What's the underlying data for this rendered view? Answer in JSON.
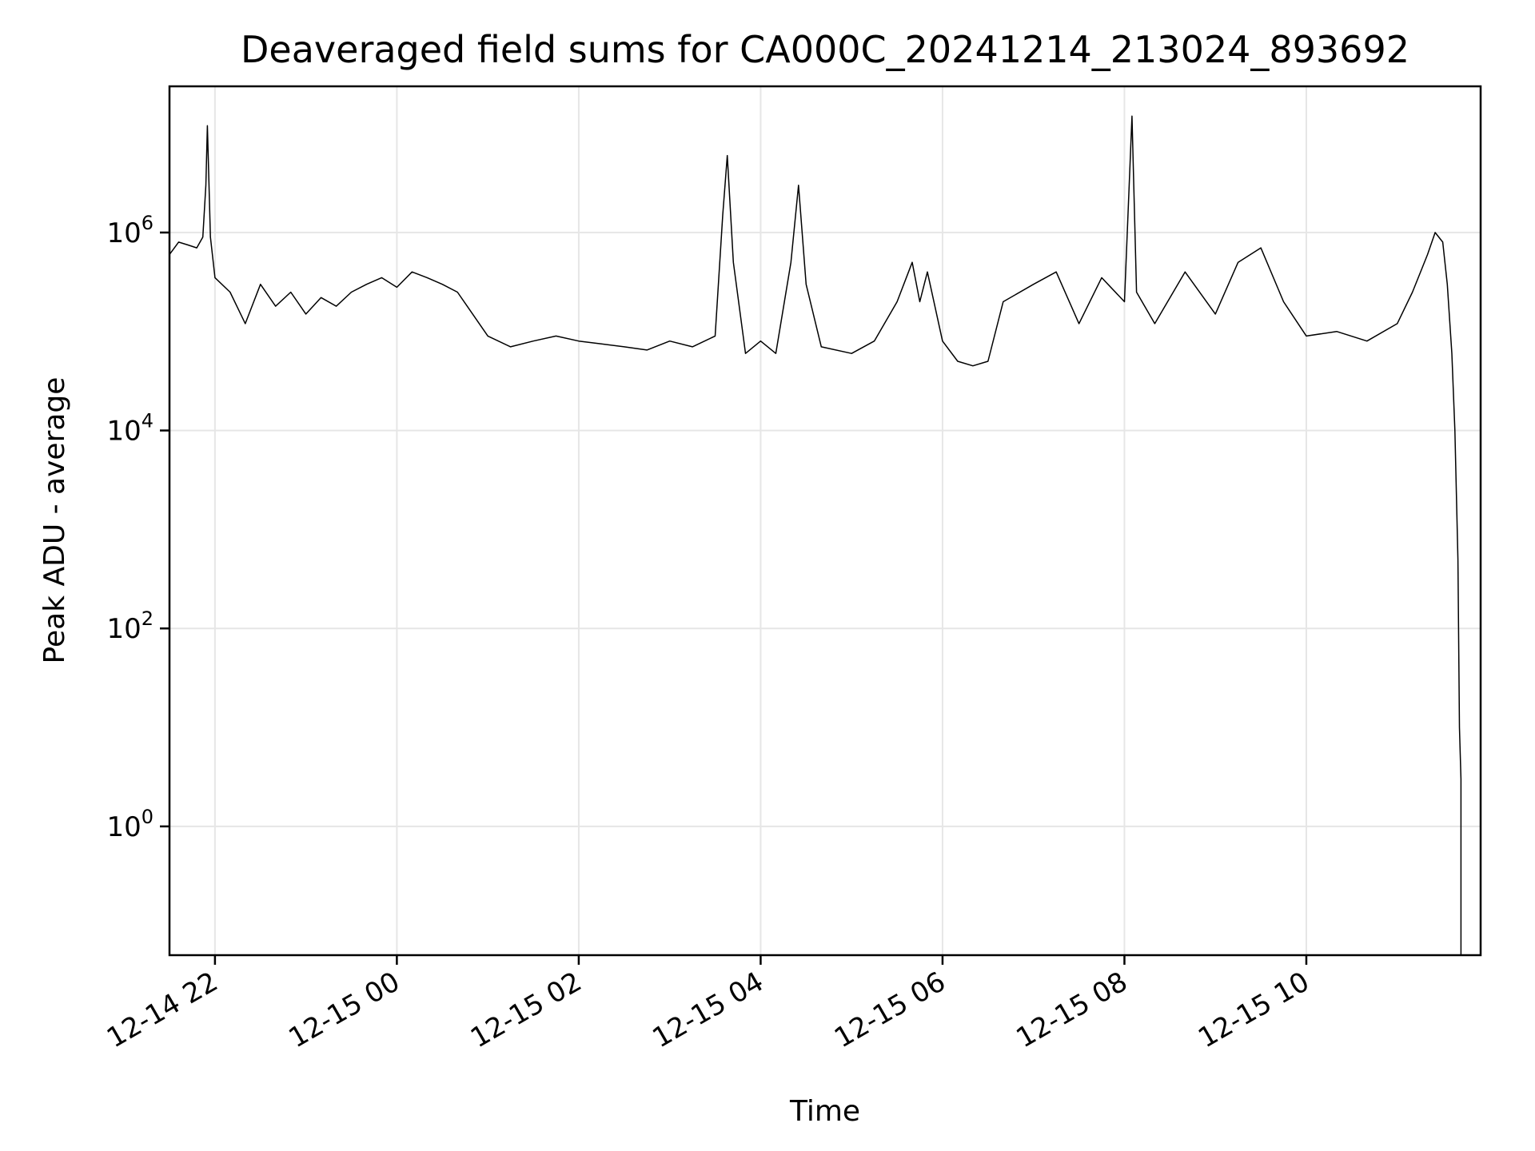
{
  "chart_data": {
    "type": "line",
    "title": "Deaveraged field sums for CA000C_20241214_213024_893692",
    "xlabel": "Time",
    "ylabel": "Peak ADU - average",
    "y_scale": "log",
    "grid": true,
    "line_color": "#000000",
    "grid_color": "#e6e6e6",
    "x_range": [
      "2024-12-14 21:30",
      "2024-12-15 11:55"
    ],
    "y_range": [
      0.05,
      30000000
    ],
    "x_ticks": [
      {
        "time": "2024-12-14 22:00",
        "label": "12-14 22"
      },
      {
        "time": "2024-12-15 00:00",
        "label": "12-15 00"
      },
      {
        "time": "2024-12-15 02:00",
        "label": "12-15 02"
      },
      {
        "time": "2024-12-15 04:00",
        "label": "12-15 04"
      },
      {
        "time": "2024-12-15 06:00",
        "label": "12-15 06"
      },
      {
        "time": "2024-12-15 08:00",
        "label": "12-15 08"
      },
      {
        "time": "2024-12-15 10:00",
        "label": "12-15 10"
      }
    ],
    "y_ticks": [
      {
        "value": 1,
        "base": "10",
        "exp": "0"
      },
      {
        "value": 100,
        "base": "10",
        "exp": "2"
      },
      {
        "value": 10000,
        "base": "10",
        "exp": "4"
      },
      {
        "value": 1000000,
        "base": "10",
        "exp": "6"
      }
    ],
    "series": [
      {
        "points": [
          [
            "2024-12-14 21:30",
            600000
          ],
          [
            "2024-12-14 21:36",
            800000
          ],
          [
            "2024-12-14 21:42",
            750000
          ],
          [
            "2024-12-14 21:48",
            700000
          ],
          [
            "2024-12-14 21:52",
            900000
          ],
          [
            "2024-12-14 21:54",
            3000000
          ],
          [
            "2024-12-14 21:55",
            12000000
          ],
          [
            "2024-12-14 21:57",
            900000
          ],
          [
            "2024-12-14 22:00",
            350000
          ],
          [
            "2024-12-14 22:10",
            250000
          ],
          [
            "2024-12-14 22:20",
            120000
          ],
          [
            "2024-12-14 22:30",
            300000
          ],
          [
            "2024-12-14 22:40",
            180000
          ],
          [
            "2024-12-14 22:50",
            250000
          ],
          [
            "2024-12-14 23:00",
            150000
          ],
          [
            "2024-12-14 23:10",
            220000
          ],
          [
            "2024-12-14 23:20",
            180000
          ],
          [
            "2024-12-14 23:30",
            250000
          ],
          [
            "2024-12-14 23:40",
            300000
          ],
          [
            "2024-12-14 23:50",
            350000
          ],
          [
            "2024-12-15 00:00",
            280000
          ],
          [
            "2024-12-15 00:10",
            400000
          ],
          [
            "2024-12-15 00:20",
            350000
          ],
          [
            "2024-12-15 00:30",
            300000
          ],
          [
            "2024-12-15 00:40",
            250000
          ],
          [
            "2024-12-15 00:50",
            150000
          ],
          [
            "2024-12-15 01:00",
            90000
          ],
          [
            "2024-12-15 01:15",
            70000
          ],
          [
            "2024-12-15 01:30",
            80000
          ],
          [
            "2024-12-15 01:45",
            90000
          ],
          [
            "2024-12-15 02:00",
            80000
          ],
          [
            "2024-12-15 02:15",
            75000
          ],
          [
            "2024-12-15 02:30",
            70000
          ],
          [
            "2024-12-15 02:45",
            65000
          ],
          [
            "2024-12-15 03:00",
            80000
          ],
          [
            "2024-12-15 03:15",
            70000
          ],
          [
            "2024-12-15 03:30",
            90000
          ],
          [
            "2024-12-15 03:35",
            1500000
          ],
          [
            "2024-12-15 03:38",
            6000000
          ],
          [
            "2024-12-15 03:42",
            500000
          ],
          [
            "2024-12-15 03:50",
            60000
          ],
          [
            "2024-12-15 04:00",
            80000
          ],
          [
            "2024-12-15 04:10",
            60000
          ],
          [
            "2024-12-15 04:20",
            500000
          ],
          [
            "2024-12-15 04:25",
            3000000
          ],
          [
            "2024-12-15 04:30",
            300000
          ],
          [
            "2024-12-15 04:40",
            70000
          ],
          [
            "2024-12-15 05:00",
            60000
          ],
          [
            "2024-12-15 05:15",
            80000
          ],
          [
            "2024-12-15 05:30",
            200000
          ],
          [
            "2024-12-15 05:40",
            500000
          ],
          [
            "2024-12-15 05:45",
            200000
          ],
          [
            "2024-12-15 05:50",
            400000
          ],
          [
            "2024-12-15 06:00",
            80000
          ],
          [
            "2024-12-15 06:10",
            50000
          ],
          [
            "2024-12-15 06:20",
            45000
          ],
          [
            "2024-12-15 06:30",
            50000
          ],
          [
            "2024-12-15 06:40",
            200000
          ],
          [
            "2024-12-15 07:00",
            300000
          ],
          [
            "2024-12-15 07:15",
            400000
          ],
          [
            "2024-12-15 07:30",
            120000
          ],
          [
            "2024-12-15 07:45",
            350000
          ],
          [
            "2024-12-15 08:00",
            200000
          ],
          [
            "2024-12-15 08:05",
            15000000
          ],
          [
            "2024-12-15 08:08",
            250000
          ],
          [
            "2024-12-15 08:20",
            120000
          ],
          [
            "2024-12-15 08:40",
            400000
          ],
          [
            "2024-12-15 09:00",
            150000
          ],
          [
            "2024-12-15 09:15",
            500000
          ],
          [
            "2024-12-15 09:30",
            700000
          ],
          [
            "2024-12-15 09:45",
            200000
          ],
          [
            "2024-12-15 10:00",
            90000
          ],
          [
            "2024-12-15 10:20",
            100000
          ],
          [
            "2024-12-15 10:40",
            80000
          ],
          [
            "2024-12-15 11:00",
            120000
          ],
          [
            "2024-12-15 11:10",
            250000
          ],
          [
            "2024-12-15 11:20",
            600000
          ],
          [
            "2024-12-15 11:25",
            1000000
          ],
          [
            "2024-12-15 11:30",
            800000
          ],
          [
            "2024-12-15 11:33",
            300000
          ],
          [
            "2024-12-15 11:36",
            60000
          ],
          [
            "2024-12-15 11:38",
            10000
          ],
          [
            "2024-12-15 11:40",
            500
          ],
          [
            "2024-12-15 11:41",
            10
          ],
          [
            "2024-12-15 11:42",
            3
          ],
          [
            "2024-12-15 11:42",
            0.05
          ]
        ]
      }
    ]
  }
}
